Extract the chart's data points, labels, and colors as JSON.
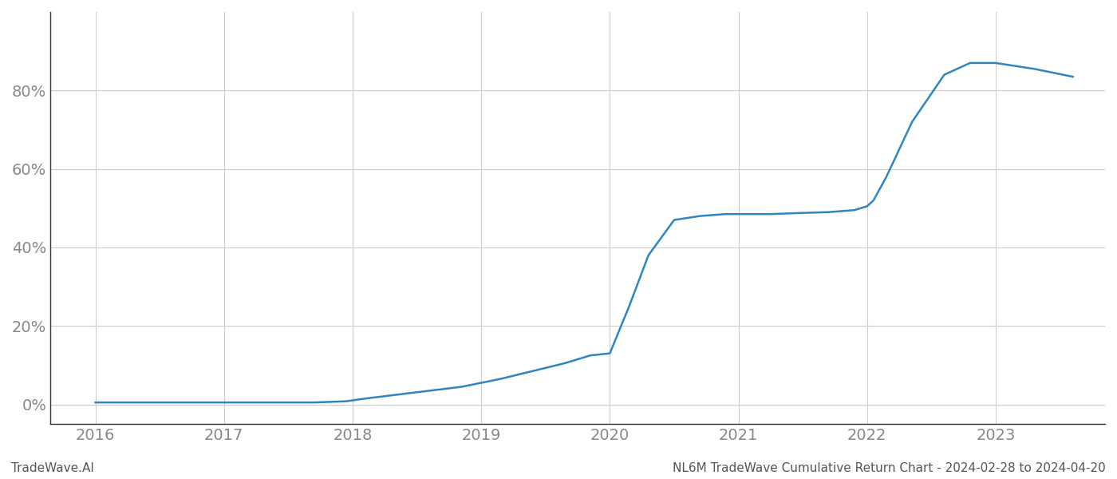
{
  "title": "NL6M TradeWave Cumulative Return Chart - 2024-02-28 to 2024-04-20",
  "watermark": "TradeWave.AI",
  "line_color": "#2e86c1",
  "background_color": "#ffffff",
  "grid_color": "#cccccc",
  "x_values": [
    2016.0,
    2016.25,
    2016.5,
    2016.75,
    2017.0,
    2017.15,
    2017.4,
    2017.7,
    2017.95,
    2018.1,
    2018.35,
    2018.6,
    2018.85,
    2019.0,
    2019.15,
    2019.4,
    2019.65,
    2019.85,
    2020.0,
    2020.15,
    2020.3,
    2020.5,
    2020.7,
    2020.9,
    2021.0,
    2021.25,
    2021.5,
    2021.7,
    2021.9,
    2022.0,
    2022.05,
    2022.15,
    2022.35,
    2022.6,
    2022.8,
    2023.0,
    2023.3,
    2023.6
  ],
  "y_values": [
    0.5,
    0.5,
    0.5,
    0.5,
    0.5,
    0.5,
    0.5,
    0.5,
    0.8,
    1.5,
    2.5,
    3.5,
    4.5,
    5.5,
    6.5,
    8.5,
    10.5,
    12.5,
    13.0,
    25.0,
    38.0,
    47.0,
    48.0,
    48.5,
    48.5,
    48.5,
    48.8,
    49.0,
    49.5,
    50.5,
    52.0,
    58.0,
    72.0,
    84.0,
    87.0,
    87.0,
    85.5,
    83.5
  ],
  "xlim": [
    2015.65,
    2023.85
  ],
  "ylim": [
    -5,
    100
  ],
  "yticks": [
    0,
    20,
    40,
    60,
    80
  ],
  "ytick_labels": [
    "0%",
    "20%",
    "40%",
    "60%",
    "80%"
  ],
  "xticks": [
    2016,
    2017,
    2018,
    2019,
    2020,
    2021,
    2022,
    2023
  ],
  "xtick_labels": [
    "2016",
    "2017",
    "2018",
    "2019",
    "2020",
    "2021",
    "2022",
    "2023"
  ],
  "line_width": 1.8,
  "label_color": "#888888",
  "title_color": "#555555",
  "watermark_color": "#555555",
  "spine_color": "#333333",
  "title_fontsize": 11,
  "tick_fontsize": 14,
  "watermark_fontsize": 11
}
